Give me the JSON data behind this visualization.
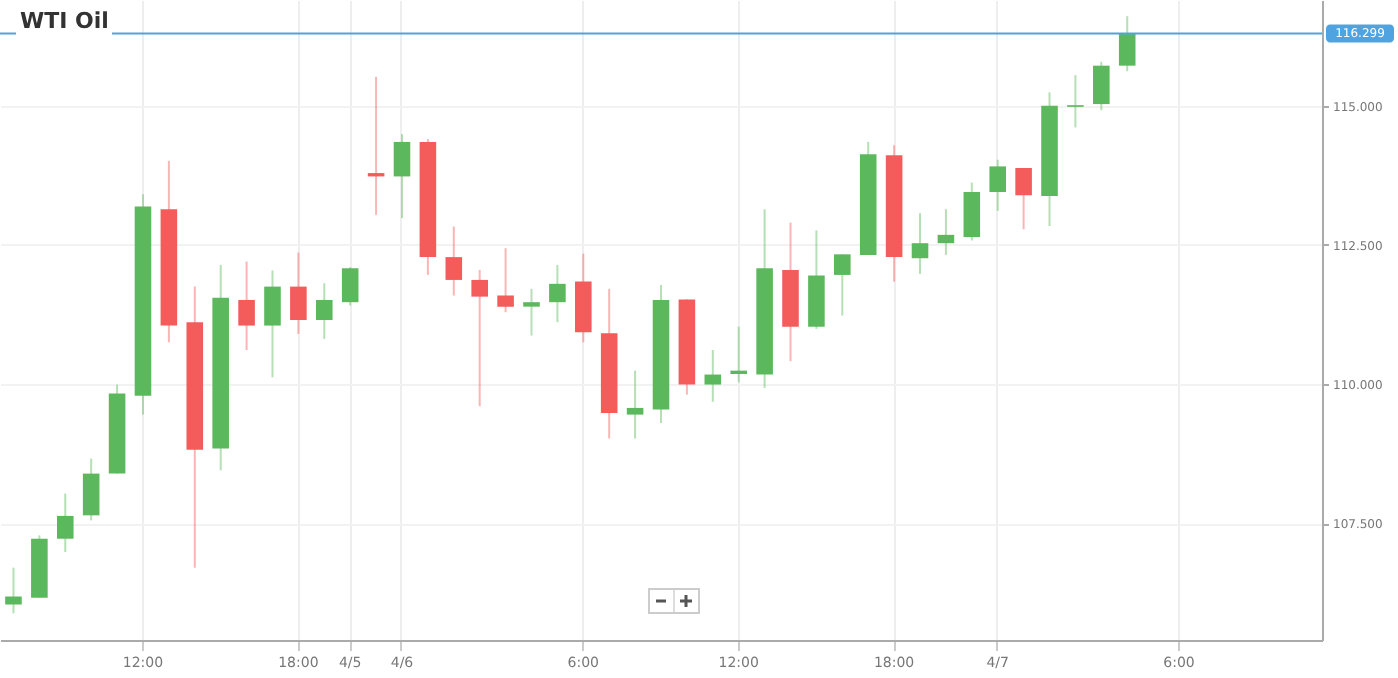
{
  "chart_data": {
    "type": "candlestick",
    "title": "WTI Oil",
    "categories": [
      null,
      null,
      null,
      null,
      null,
      "12:00",
      null,
      null,
      null,
      null,
      null,
      "18:00",
      null,
      "4/5",
      null,
      "4/6",
      null,
      null,
      null,
      null,
      null,
      null,
      "6:00",
      null,
      null,
      null,
      null,
      null,
      "12:00",
      null,
      null,
      null,
      null,
      null,
      "18:00",
      null,
      null,
      null,
      "4/7",
      null,
      null,
      null,
      null,
      null,
      null,
      "6:00",
      null,
      null,
      null,
      null,
      null
    ],
    "ohlc": [
      [
        106.04,
        106.7,
        105.88,
        106.18
      ],
      [
        106.16,
        107.28,
        106.16,
        107.22
      ],
      [
        107.22,
        108.03,
        106.98,
        107.63
      ],
      [
        107.64,
        108.66,
        107.55,
        108.39
      ],
      [
        108.39,
        109.99,
        108.39,
        109.83
      ],
      [
        109.79,
        113.41,
        109.45,
        113.19
      ],
      [
        113.14,
        114.01,
        110.75,
        111.05
      ],
      [
        111.11,
        111.75,
        106.7,
        108.82
      ],
      [
        108.84,
        112.14,
        108.45,
        111.55
      ],
      [
        111.51,
        112.2,
        110.61,
        111.05
      ],
      [
        111.05,
        112.04,
        110.12,
        111.75
      ],
      [
        111.75,
        112.36,
        110.9,
        111.15
      ],
      [
        111.15,
        111.81,
        110.81,
        111.51
      ],
      [
        111.47,
        112.1,
        111.41,
        112.08
      ],
      [
        113.79,
        115.52,
        113.04,
        113.73
      ],
      [
        113.73,
        114.49,
        112.98,
        114.35
      ],
      [
        114.35,
        114.4,
        111.96,
        112.28
      ],
      [
        112.28,
        112.83,
        111.59,
        111.87
      ],
      [
        111.87,
        112.05,
        109.6,
        111.57
      ],
      [
        111.59,
        112.44,
        111.29,
        111.39
      ],
      [
        111.39,
        111.71,
        110.87,
        111.47
      ],
      [
        111.47,
        112.14,
        111.11,
        111.8
      ],
      [
        111.84,
        112.34,
        110.75,
        110.93
      ],
      [
        110.91,
        111.71,
        109.02,
        109.48
      ],
      [
        109.45,
        110.24,
        109.02,
        109.57
      ],
      [
        109.54,
        111.78,
        109.3,
        111.51
      ],
      [
        111.52,
        111.52,
        109.81,
        109.99
      ],
      [
        109.99,
        110.61,
        109.68,
        110.17
      ],
      [
        110.18,
        111.03,
        110.03,
        110.24
      ],
      [
        110.17,
        113.14,
        109.93,
        112.08
      ],
      [
        112.05,
        112.9,
        110.41,
        111.03
      ],
      [
        111.03,
        112.76,
        110.99,
        111.95
      ],
      [
        111.96,
        112.33,
        111.23,
        112.33
      ],
      [
        112.32,
        114.35,
        112.32,
        114.13
      ],
      [
        114.11,
        114.29,
        111.84,
        112.28
      ],
      [
        112.26,
        113.07,
        111.98,
        112.53
      ],
      [
        112.53,
        113.14,
        112.32,
        112.68
      ],
      [
        112.64,
        113.62,
        112.58,
        113.45
      ],
      [
        113.45,
        114.03,
        113.11,
        113.91
      ],
      [
        113.88,
        113.88,
        112.78,
        113.39
      ],
      [
        113.38,
        115.24,
        112.84,
        115.0
      ],
      [
        114.98,
        115.55,
        114.61,
        115.01
      ],
      [
        115.03,
        115.79,
        114.92,
        115.72
      ],
      [
        115.72,
        116.61,
        115.62,
        116.3
      ],
      null,
      null,
      null,
      null,
      null,
      null,
      null
    ],
    "colors": [
      "#5cb85c",
      "#5cb85c",
      "#5cb85c",
      "#5cb85c",
      "#5cb85c",
      "#5cb85c",
      "#f45b5b",
      "#f45b5b",
      "#5cb85c",
      "#f45b5b",
      "#5cb85c",
      "#f45b5b",
      "#5cb85c",
      "#5cb85c",
      "#f45b5b",
      "#5cb85c",
      "#f45b5b",
      "#f45b5b",
      "#f45b5b",
      "#f45b5b",
      "#5cb85c",
      "#5cb85c",
      "#f45b5b",
      "#f45b5b",
      "#5cb85c",
      "#5cb85c",
      "#f45b5b",
      "#5cb85c",
      "#5cb85c",
      "#5cb85c",
      "#f45b5b",
      "#5cb85c",
      "#5cb85c",
      "#5cb85c",
      "#f45b5b",
      "#5cb85c",
      "#5cb85c",
      "#5cb85c",
      "#5cb85c",
      "#f45b5b",
      "#5cb85c",
      "#5cb85c",
      "#5cb85c",
      "#5cb85c",
      null,
      null,
      null,
      null,
      null,
      null,
      null
    ],
    "ylim": [
      105.4,
      116.9
    ],
    "yticks": [
      {
        "value": 107.5,
        "label": "107.500"
      },
      {
        "value": 110,
        "label": "110.000"
      },
      {
        "value": 112.5,
        "label": "112.500"
      },
      {
        "value": 115,
        "label": "115.000"
      }
    ],
    "ref_lines": [
      {
        "axis": "y",
        "value": 116.299,
        "label": "116.299",
        "color": "#4fa3e0"
      }
    ],
    "grid": true
  }
}
